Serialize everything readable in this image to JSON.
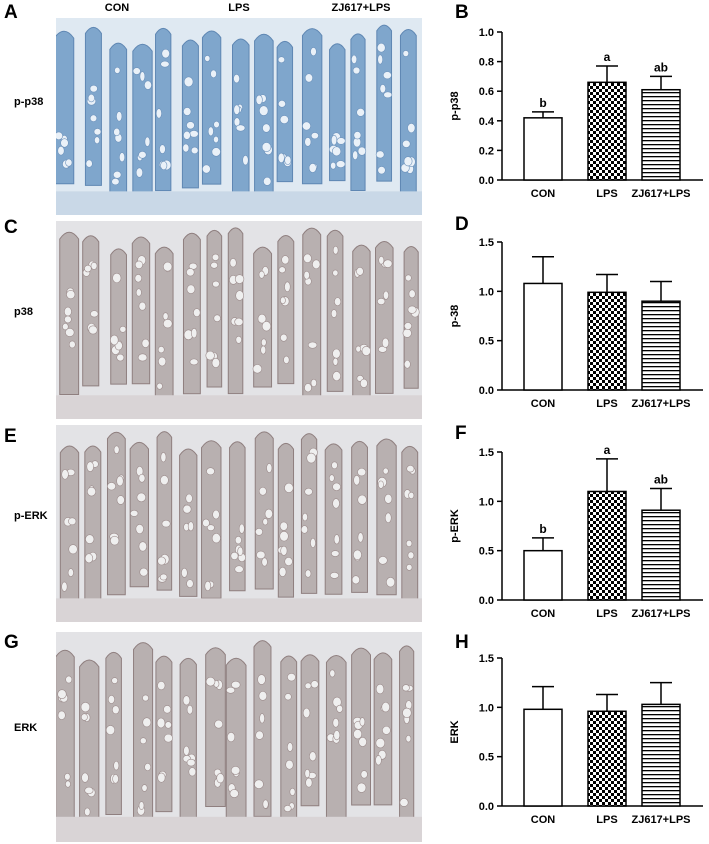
{
  "panel_letters": {
    "A": "A",
    "B": "B",
    "C": "C",
    "D": "D",
    "E": "E",
    "F": "F",
    "G": "G",
    "H": "H"
  },
  "columns": [
    "CON",
    "LPS",
    "ZJ617+LPS"
  ],
  "rows": [
    "p-p38",
    "p38",
    "p-ERK",
    "ERK"
  ],
  "colors": {
    "stain_blue": "#7fa6cc",
    "stain_brown": "#b8b0b0",
    "bar_stroke": "#000000"
  },
  "chart_data": [
    {
      "type": "bar",
      "ylabel": "p-p38",
      "categories": [
        "CON",
        "LPS",
        "ZJ617+LPS"
      ],
      "values": [
        0.42,
        0.66,
        0.61
      ],
      "errors": [
        0.04,
        0.11,
        0.09
      ],
      "letters": [
        "b",
        "a",
        "ab"
      ],
      "patterns": [
        "none",
        "checker",
        "hlines"
      ],
      "ylim": [
        0,
        1.0
      ],
      "ticks": [
        "0.0",
        "0.2",
        "0.4",
        "0.6",
        "0.8",
        "1.0"
      ]
    },
    {
      "type": "bar",
      "ylabel": "p-38",
      "categories": [
        "CON",
        "LPS",
        "ZJ617+LPS"
      ],
      "values": [
        1.08,
        0.99,
        0.9
      ],
      "errors": [
        0.27,
        0.18,
        0.2
      ],
      "letters": [
        "",
        "",
        ""
      ],
      "patterns": [
        "none",
        "checker",
        "hlines"
      ],
      "ylim": [
        0,
        1.5
      ],
      "ticks": [
        "0.0",
        "0.5",
        "1.0",
        "1.5"
      ]
    },
    {
      "type": "bar",
      "ylabel": "p-ERK",
      "categories": [
        "CON",
        "LPS",
        "ZJ617+LPS"
      ],
      "values": [
        0.5,
        1.1,
        0.91
      ],
      "errors": [
        0.13,
        0.33,
        0.22
      ],
      "letters": [
        "b",
        "a",
        "ab"
      ],
      "patterns": [
        "none",
        "checker",
        "hlines"
      ],
      "ylim": [
        0,
        1.5
      ],
      "ticks": [
        "0.0",
        "0.5",
        "1.0",
        "1.5"
      ]
    },
    {
      "type": "bar",
      "ylabel": "ERK",
      "categories": [
        "CON",
        "LPS",
        "ZJ617+LPS"
      ],
      "values": [
        0.98,
        0.96,
        1.03
      ],
      "errors": [
        0.23,
        0.17,
        0.22
      ],
      "letters": [
        "",
        "",
        ""
      ],
      "patterns": [
        "none",
        "checker",
        "hlines"
      ],
      "ylim": [
        0,
        1.5
      ],
      "ticks": [
        "0.0",
        "0.5",
        "1.0",
        "1.5"
      ]
    }
  ]
}
